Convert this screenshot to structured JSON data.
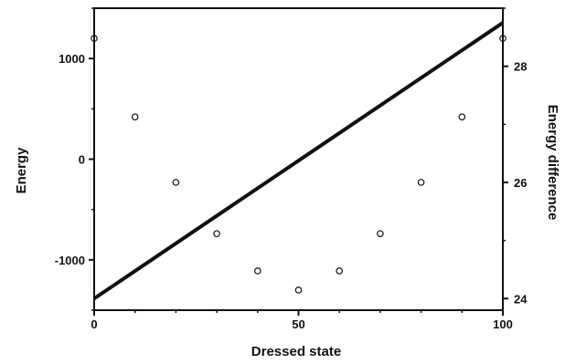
{
  "chart_data": {
    "type": "scatter",
    "xlabel": "Dressed state",
    "ylabel": "Energy",
    "y2label": "Energy difference",
    "xlim": [
      0,
      100
    ],
    "ylim": [
      -1500,
      1500
    ],
    "y2lim": [
      23.8,
      29.0
    ],
    "x_ticks": [
      "0",
      "50",
      "100"
    ],
    "y_ticks": [
      "-1000",
      "0",
      "1000"
    ],
    "y2_ticks": [
      "24",
      "26",
      "28"
    ],
    "grid": false,
    "legend": "none",
    "series": [
      {
        "axis": "left",
        "style": "open-circle markers",
        "color": "#111111",
        "x": [
          0,
          10,
          20,
          30,
          40,
          50,
          60,
          70,
          80,
          90,
          100
        ],
        "y": [
          1200,
          420,
          -230,
          -740,
          -1110,
          -1300,
          -1110,
          -740,
          -230,
          420,
          1200
        ]
      },
      {
        "axis": "right",
        "style": "thick line",
        "color": "#111111",
        "x": [
          0,
          100
        ],
        "y": [
          24.0,
          28.75
        ]
      }
    ]
  }
}
